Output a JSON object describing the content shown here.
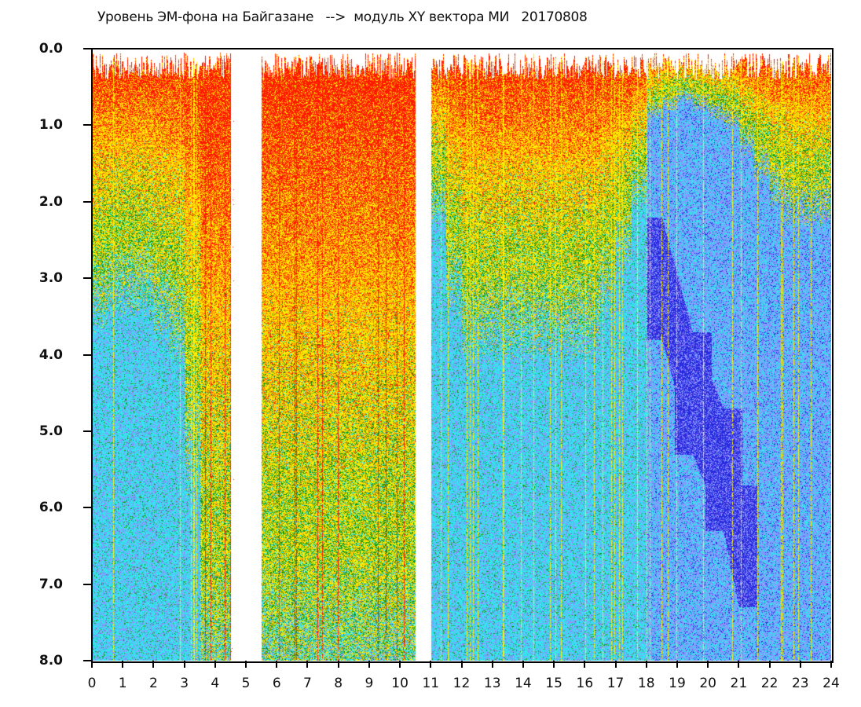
{
  "chart_data": {
    "type": "heatmap",
    "title": "Уровень ЭМ-фона на Байгазане   -->  модуль XY вектора МИ   20170808",
    "xlabel": "",
    "ylabel": "",
    "xlim": [
      0,
      24
    ],
    "ylim": [
      0,
      8
    ],
    "y_inverted": true,
    "x_ticks": [
      "0",
      "1",
      "2",
      "3",
      "4",
      "5",
      "6",
      "7",
      "8",
      "9",
      "10",
      "11",
      "12",
      "13",
      "14",
      "15",
      "16",
      "17",
      "18",
      "19",
      "20",
      "21",
      "22",
      "23",
      "24"
    ],
    "y_ticks": [
      "0.0",
      "1.0",
      "2.0",
      "3.0",
      "4.0",
      "5.0",
      "6.0",
      "7.0",
      "8.0"
    ],
    "grid": false,
    "legend": "none",
    "color_scale": [
      "#ff1a00",
      "#ff9900",
      "#ffee00",
      "#119911",
      "#33e6ee",
      "#7f9cff",
      "#2a2ae0",
      "#a27bff"
    ],
    "bin_hours": 0.5,
    "warm_depth_by_half_hour": [
      3.2,
      3.0,
      3.0,
      3.0,
      3.3,
      3.5,
      5.0,
      8,
      8,
      null,
      null,
      8,
      8,
      8,
      8,
      8,
      8,
      8,
      8,
      8,
      8,
      null,
      2.0,
      3.0,
      3.5,
      3.5,
      3.5,
      3.5,
      3.5,
      3.5,
      3.5,
      3.5,
      3.5,
      3.0,
      2.5,
      1.8,
      0.8,
      0.7,
      0.6,
      0.7,
      0.8,
      0.9,
      1.2,
      1.5,
      1.8,
      2.0,
      2.0,
      2.0
    ],
    "dark_blue_band": [
      [
        18.5,
        3.0
      ],
      [
        19.5,
        4.5
      ],
      [
        20.5,
        5.5
      ],
      [
        21.0,
        6.5
      ]
    ]
  }
}
